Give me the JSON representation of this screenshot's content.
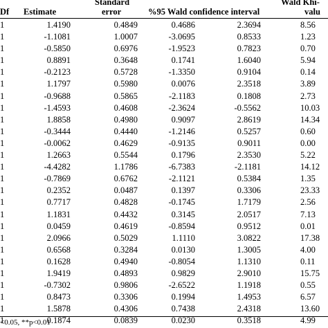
{
  "table": {
    "headers": {
      "df": "Df",
      "estimate": "Estimate",
      "standard_error_line1": "Standard",
      "standard_error_line2": "error",
      "wald_ci": "%95 Wald confidence interval",
      "wald_khi_line1": "Wald Khi-",
      "wald_khi_line2": "valu"
    },
    "rows": [
      {
        "df": "1",
        "estimate": "1.4190",
        "se": "0.4849",
        "ci_low": "0.4686",
        "ci_high": "2.3694",
        "wald": "8.56"
      },
      {
        "df": "1",
        "estimate": "-1.1081",
        "se": "1.0007",
        "ci_low": "-3.0695",
        "ci_high": "0.8533",
        "wald": "1.23"
      },
      {
        "df": "1",
        "estimate": "-0.5850",
        "se": "0.6976",
        "ci_low": "-1.9523",
        "ci_high": "0.7823",
        "wald": "0.70"
      },
      {
        "df": "1",
        "estimate": "0.8891",
        "se": "0.3648",
        "ci_low": "0.1741",
        "ci_high": "1.6040",
        "wald": "5.94"
      },
      {
        "df": "1",
        "estimate": "-0.2123",
        "se": "0.5728",
        "ci_low": "-1.3350",
        "ci_high": "0.9104",
        "wald": "0.14"
      },
      {
        "df": "1",
        "estimate": "1.1797",
        "se": "0.5980",
        "ci_low": "0.0076",
        "ci_high": "2.3518",
        "wald": "3.89"
      },
      {
        "df": "1",
        "estimate": "-0.9688",
        "se": "0.5865",
        "ci_low": "-2.1183",
        "ci_high": "0.1808",
        "wald": "2.73"
      },
      {
        "df": "1",
        "estimate": "-1.4593",
        "se": "0.4608",
        "ci_low": "-2.3624",
        "ci_high": "-0.5562",
        "wald": "10.03"
      },
      {
        "df": "1",
        "estimate": "1.8858",
        "se": "0.4980",
        "ci_low": "0.9097",
        "ci_high": "2.8619",
        "wald": "14.34"
      },
      {
        "df": "1",
        "estimate": "-0.3444",
        "se": "0.4440",
        "ci_low": "-1.2146",
        "ci_high": "0.5257",
        "wald": "0.60"
      },
      {
        "df": "1",
        "estimate": "-0.0062",
        "se": "0.4629",
        "ci_low": "-0.9135",
        "ci_high": "0.9011",
        "wald": "0.00"
      },
      {
        "df": "1",
        "estimate": "1.2663",
        "se": "0.5544",
        "ci_low": "0.1796",
        "ci_high": "2.3530",
        "wald": "5.22"
      },
      {
        "df": "1",
        "estimate": "-4.4282",
        "se": "1.1786",
        "ci_low": "-6.7383",
        "ci_high": "-2.1181",
        "wald": "14.12"
      },
      {
        "df": "1",
        "estimate": "-0.7869",
        "se": "0.6762",
        "ci_low": "-2.1121",
        "ci_high": "0.5384",
        "wald": "1.35"
      },
      {
        "df": "1",
        "estimate": "0.2352",
        "se": "0.0487",
        "ci_low": "0.1397",
        "ci_high": "0.3306",
        "wald": "23.33"
      },
      {
        "df": "1",
        "estimate": "0.7717",
        "se": "0.4828",
        "ci_low": "-0.1745",
        "ci_high": "1.7179",
        "wald": "2.56"
      },
      {
        "df": "1",
        "estimate": "1.1831",
        "se": "0.4432",
        "ci_low": "0.3145",
        "ci_high": "2.0517",
        "wald": "7.13"
      },
      {
        "df": "1",
        "estimate": "0.0459",
        "se": "0.4619",
        "ci_low": "-0.8594",
        "ci_high": "0.9512",
        "wald": "0.01"
      },
      {
        "df": "1",
        "estimate": "2.0966",
        "se": "0.5029",
        "ci_low": "1.1110",
        "ci_high": "3.0822",
        "wald": "17.38"
      },
      {
        "df": "1",
        "estimate": "0.6568",
        "se": "0.3284",
        "ci_low": "0.0130",
        "ci_high": "1.3005",
        "wald": "4.00"
      },
      {
        "df": "1",
        "estimate": "0.1628",
        "se": "0.4940",
        "ci_low": "-0.8054",
        "ci_high": "1.1310",
        "wald": "0.11"
      },
      {
        "df": "1",
        "estimate": "1.9419",
        "se": "0.4893",
        "ci_low": "0.9829",
        "ci_high": "2.9010",
        "wald": "15.75"
      },
      {
        "df": "1",
        "estimate": "-0.7302",
        "se": "0.9806",
        "ci_low": "-2.6522",
        "ci_high": "1.1918",
        "wald": "0.55"
      },
      {
        "df": "1",
        "estimate": "0.8473",
        "se": "0.3306",
        "ci_low": "0.1994",
        "ci_high": "1.4953",
        "wald": "6.57"
      },
      {
        "df": "1",
        "estimate": "1.5878",
        "se": "0.4306",
        "ci_low": "0.7438",
        "ci_high": "2.4318",
        "wald": "13.60"
      },
      {
        "df": "1",
        "estimate": "0.1874",
        "se": "0.0839",
        "ci_low": "0.0230",
        "ci_high": "0.3518",
        "wald": "4.99"
      }
    ]
  },
  "footnote": "<0.05, **p<0.01"
}
